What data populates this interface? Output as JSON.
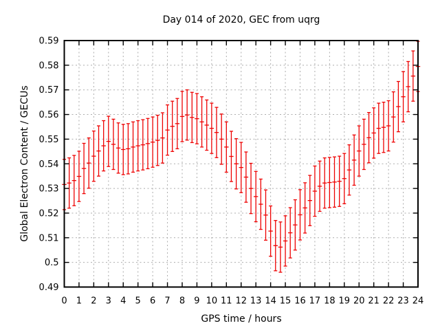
{
  "page": {
    "background": "#ffffff"
  },
  "chart_data": {
    "type": "scatter",
    "style": "yerrorbars",
    "title": "Day 014 of 2020, GEC from uqrg",
    "xlabel": "GPS time / hours",
    "ylabel": "Global Electron Content / GECUs",
    "xlim": [
      0,
      24
    ],
    "ylim": [
      0.49,
      0.59
    ],
    "grid": true,
    "legend": "none",
    "colors": {
      "series": "#ee0000",
      "grid": "#ababab",
      "axis": "#000000",
      "text": "#000000",
      "background": "#ffffff"
    },
    "x_ticks": [
      0,
      1,
      2,
      3,
      4,
      5,
      6,
      7,
      8,
      9,
      10,
      11,
      12,
      13,
      14,
      15,
      16,
      17,
      18,
      19,
      20,
      21,
      22,
      23,
      24
    ],
    "y_ticks": [
      {
        "value": 0.49,
        "label": "0.49"
      },
      {
        "value": 0.5,
        "label": "0.5"
      },
      {
        "value": 0.51,
        "label": "0.51"
      },
      {
        "value": 0.52,
        "label": "0.52"
      },
      {
        "value": 0.53,
        "label": "0.53"
      },
      {
        "value": 0.54,
        "label": "0.54"
      },
      {
        "value": 0.55,
        "label": "0.55"
      },
      {
        "value": 0.56,
        "label": "0.56"
      },
      {
        "value": 0.57,
        "label": "0.57"
      },
      {
        "value": 0.58,
        "label": "0.58"
      },
      {
        "value": 0.59,
        "label": "0.59"
      }
    ],
    "series": [
      {
        "name": "GEC",
        "yerr": 0.0102,
        "x": [
          0,
          0.333,
          0.667,
          1,
          1.333,
          1.667,
          2,
          2.333,
          2.667,
          3,
          3.333,
          3.667,
          4,
          4.333,
          4.667,
          5,
          5.333,
          5.667,
          6,
          6.333,
          6.667,
          7,
          7.333,
          7.667,
          8,
          8.333,
          8.667,
          9,
          9.333,
          9.667,
          10,
          10.333,
          10.667,
          11,
          11.333,
          11.667,
          12,
          12.333,
          12.667,
          13,
          13.333,
          13.667,
          14,
          14.333,
          14.667,
          15,
          15.333,
          15.667,
          16,
          16.333,
          16.667,
          17,
          17.333,
          17.667,
          18,
          18.333,
          18.667,
          19,
          19.333,
          19.667,
          20,
          20.333,
          20.667,
          21,
          21.333,
          21.667,
          22,
          22.333,
          22.667,
          23,
          23.333,
          23.667,
          24
        ],
        "y": [
          0.5316,
          0.5322,
          0.5332,
          0.5349,
          0.5381,
          0.5403,
          0.5431,
          0.5452,
          0.5473,
          0.5491,
          0.5479,
          0.5464,
          0.5458,
          0.5461,
          0.5468,
          0.5473,
          0.5477,
          0.5482,
          0.5488,
          0.5495,
          0.5505,
          0.5537,
          0.5552,
          0.5563,
          0.5592,
          0.5598,
          0.5588,
          0.5583,
          0.557,
          0.5557,
          0.5544,
          0.5527,
          0.55,
          0.5468,
          0.543,
          0.54,
          0.5385,
          0.5346,
          0.53,
          0.5267,
          0.5236,
          0.5192,
          0.5127,
          0.5068,
          0.5062,
          0.5087,
          0.512,
          0.5152,
          0.5193,
          0.5221,
          0.5251,
          0.5289,
          0.5309,
          0.5322,
          0.5324,
          0.5326,
          0.5329,
          0.534,
          0.5375,
          0.5415,
          0.5452,
          0.5479,
          0.5506,
          0.5525,
          0.5544,
          0.5548,
          0.5554,
          0.559,
          0.5632,
          0.5672,
          0.5713,
          0.5756,
          0.5795
        ]
      }
    ]
  }
}
